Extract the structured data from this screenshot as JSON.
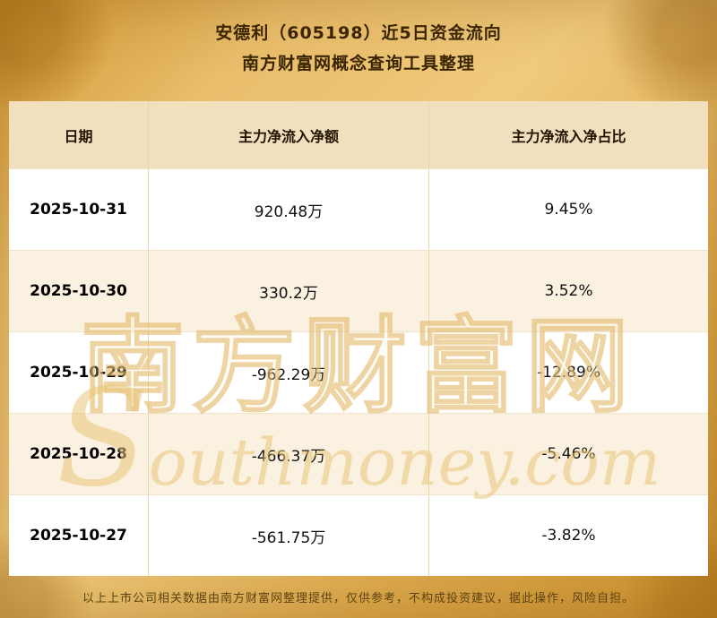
{
  "title": {
    "line1": "安德利（605198）近5日资金流向",
    "line2": "南方财富网概念查询工具整理"
  },
  "chart_data": {
    "type": "table",
    "title": "安德利（605198）近5日资金流向",
    "subtitle": "南方财富网概念查询工具整理",
    "columns": [
      "日期",
      "主力净流入净额",
      "主力净流入净占比"
    ],
    "rows": [
      [
        "2025-10-31",
        "920.48万",
        "9.45%"
      ],
      [
        "2025-10-30",
        "330.2万",
        "3.52%"
      ],
      [
        "2025-10-29",
        "-962.29万",
        "-12.89%"
      ],
      [
        "2025-10-28",
        "-466.37万",
        "-5.46%"
      ],
      [
        "2025-10-27",
        "-561.75万",
        "-3.82%"
      ]
    ]
  },
  "watermark": {
    "cn": "南方财富网",
    "en": "Southmoney.com"
  },
  "footer": {
    "disclaimer": "以上上市公司相关数据由南方财富网整理提供，仅供参考，不构成投资建议，据此操作，风险自担。"
  },
  "colors": {
    "background_gold": "#dfae55",
    "header_row_bg": "#f2dfbd",
    "row_bg": "#ffffff",
    "row_alt_bg": "#faf1e1",
    "title_text": "#3a2500",
    "footer_text": "#5c4310",
    "watermark_gold": "#e0b25e"
  }
}
